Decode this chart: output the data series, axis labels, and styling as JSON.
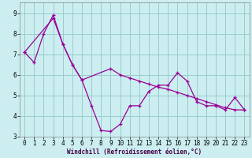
{
  "xlabel": "Windchill (Refroidissement éolien,°C)",
  "background_color": "#cceef0",
  "line_color": "#990099",
  "grid_color": "#99cccc",
  "series1_x": [
    0,
    1,
    2,
    3,
    4,
    5,
    6,
    7,
    8,
    9,
    10,
    11,
    12,
    13,
    14,
    15,
    16,
    17,
    18,
    19,
    20,
    21,
    22,
    23
  ],
  "series1_y": [
    7.1,
    6.6,
    8.0,
    8.9,
    7.5,
    6.5,
    5.75,
    4.5,
    3.3,
    3.25,
    3.6,
    4.5,
    4.5,
    5.2,
    5.5,
    5.5,
    6.1,
    5.7,
    4.7,
    4.5,
    4.5,
    4.3,
    4.9,
    4.3
  ],
  "series2_x": [
    0,
    3,
    4,
    5,
    6,
    9,
    10,
    11,
    12,
    13,
    14,
    15,
    16,
    17,
    18,
    19,
    20,
    21,
    22,
    23
  ],
  "series2_y": [
    7.1,
    8.75,
    7.5,
    6.5,
    5.75,
    6.3,
    6.0,
    5.85,
    5.7,
    5.55,
    5.4,
    5.3,
    5.15,
    5.0,
    4.85,
    4.7,
    4.55,
    4.4,
    4.3,
    4.3
  ],
  "ylim": [
    3.0,
    9.5
  ],
  "xlim": [
    -0.5,
    23.5
  ],
  "yticks": [
    3,
    4,
    5,
    6,
    7,
    8,
    9
  ],
  "xticks": [
    0,
    1,
    2,
    3,
    4,
    5,
    6,
    7,
    8,
    9,
    10,
    11,
    12,
    13,
    14,
    15,
    16,
    17,
    18,
    19,
    20,
    21,
    22,
    23
  ],
  "tick_fontsize": 5.5,
  "xlabel_fontsize": 5.5,
  "label_color": "#440044"
}
